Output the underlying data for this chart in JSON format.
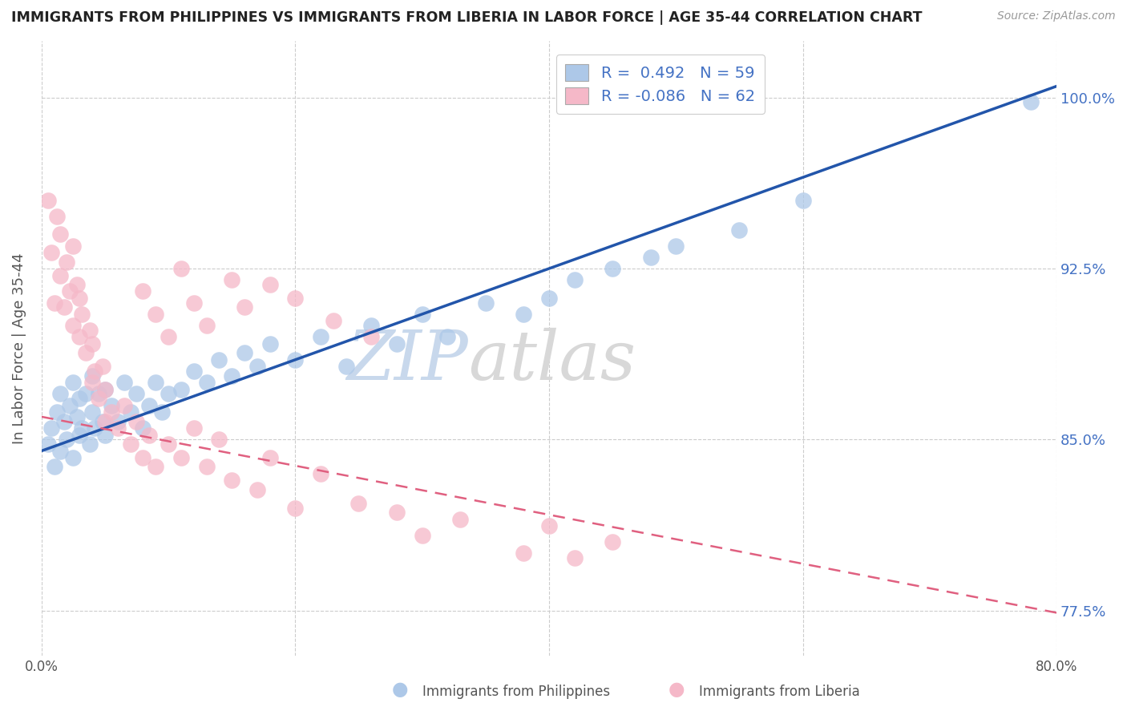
{
  "title": "IMMIGRANTS FROM PHILIPPINES VS IMMIGRANTS FROM LIBERIA IN LABOR FORCE | AGE 35-44 CORRELATION CHART",
  "source": "Source: ZipAtlas.com",
  "ylabel": "In Labor Force | Age 35-44",
  "watermark_zip": "ZIP",
  "watermark_atlas": "atlas",
  "xlim": [
    0.0,
    0.8
  ],
  "ylim": [
    0.755,
    1.025
  ],
  "r_philippines": 0.492,
  "n_philippines": 59,
  "r_liberia": -0.086,
  "n_liberia": 62,
  "philippines_dot_color": "#adc8e8",
  "liberia_dot_color": "#f5b8c8",
  "philippines_line_color": "#2255aa",
  "liberia_line_color": "#e06080",
  "ytick_positions": [
    0.775,
    0.85,
    0.925,
    1.0
  ],
  "ytick_labels": [
    "77.5%",
    "85.0%",
    "92.5%",
    "100.0%"
  ],
  "xtick_positions": [
    0.0,
    0.8
  ],
  "xtick_labels": [
    "0.0%",
    "80.0%"
  ],
  "phil_line_x0": 0.0,
  "phil_line_y0": 0.845,
  "phil_line_x1": 0.8,
  "phil_line_y1": 1.005,
  "lib_line_x0": 0.0,
  "lib_line_y0": 0.86,
  "lib_line_x1": 0.8,
  "lib_line_y1": 0.774,
  "phil_points_x": [
    0.005,
    0.008,
    0.01,
    0.012,
    0.015,
    0.015,
    0.018,
    0.02,
    0.022,
    0.025,
    0.025,
    0.028,
    0.03,
    0.03,
    0.032,
    0.035,
    0.038,
    0.04,
    0.04,
    0.042,
    0.045,
    0.048,
    0.05,
    0.05,
    0.055,
    0.06,
    0.065,
    0.07,
    0.075,
    0.08,
    0.085,
    0.09,
    0.095,
    0.1,
    0.11,
    0.12,
    0.13,
    0.14,
    0.15,
    0.16,
    0.17,
    0.18,
    0.2,
    0.22,
    0.24,
    0.26,
    0.28,
    0.3,
    0.32,
    0.35,
    0.38,
    0.4,
    0.42,
    0.45,
    0.48,
    0.5,
    0.55,
    0.6,
    0.78
  ],
  "phil_points_y": [
    0.848,
    0.855,
    0.838,
    0.862,
    0.845,
    0.87,
    0.858,
    0.85,
    0.865,
    0.842,
    0.875,
    0.86,
    0.852,
    0.868,
    0.855,
    0.87,
    0.848,
    0.862,
    0.878,
    0.855,
    0.87,
    0.858,
    0.852,
    0.872,
    0.865,
    0.858,
    0.875,
    0.862,
    0.87,
    0.855,
    0.865,
    0.875,
    0.862,
    0.87,
    0.872,
    0.88,
    0.875,
    0.885,
    0.878,
    0.888,
    0.882,
    0.892,
    0.885,
    0.895,
    0.882,
    0.9,
    0.892,
    0.905,
    0.895,
    0.91,
    0.905,
    0.912,
    0.92,
    0.925,
    0.93,
    0.935,
    0.942,
    0.955,
    0.998
  ],
  "lib_points_x": [
    0.005,
    0.008,
    0.01,
    0.012,
    0.015,
    0.015,
    0.018,
    0.02,
    0.022,
    0.025,
    0.025,
    0.028,
    0.03,
    0.03,
    0.032,
    0.035,
    0.038,
    0.04,
    0.04,
    0.042,
    0.045,
    0.048,
    0.05,
    0.05,
    0.055,
    0.06,
    0.065,
    0.07,
    0.075,
    0.08,
    0.085,
    0.09,
    0.1,
    0.11,
    0.12,
    0.13,
    0.14,
    0.15,
    0.17,
    0.18,
    0.2,
    0.22,
    0.25,
    0.28,
    0.3,
    0.33,
    0.38,
    0.4,
    0.42,
    0.45,
    0.08,
    0.09,
    0.1,
    0.11,
    0.12,
    0.13,
    0.15,
    0.16,
    0.18,
    0.2,
    0.23,
    0.26
  ],
  "lib_points_y": [
    0.955,
    0.932,
    0.91,
    0.948,
    0.922,
    0.94,
    0.908,
    0.928,
    0.915,
    0.9,
    0.935,
    0.918,
    0.895,
    0.912,
    0.905,
    0.888,
    0.898,
    0.875,
    0.892,
    0.88,
    0.868,
    0.882,
    0.858,
    0.872,
    0.862,
    0.855,
    0.865,
    0.848,
    0.858,
    0.842,
    0.852,
    0.838,
    0.848,
    0.842,
    0.855,
    0.838,
    0.85,
    0.832,
    0.828,
    0.842,
    0.82,
    0.835,
    0.822,
    0.818,
    0.808,
    0.815,
    0.8,
    0.812,
    0.798,
    0.805,
    0.915,
    0.905,
    0.895,
    0.925,
    0.91,
    0.9,
    0.92,
    0.908,
    0.918,
    0.912,
    0.902,
    0.895
  ]
}
